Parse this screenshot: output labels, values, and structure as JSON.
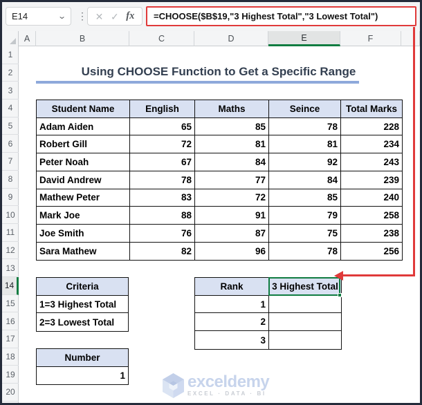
{
  "formula_bar": {
    "name_box": "E14",
    "dropdown_icon": "⌄",
    "menu_dots": "⋮",
    "cancel_icon": "✕",
    "enter_icon": "✓",
    "fx_label": "fx",
    "formula": "=CHOOSE($B$19,\"3 Highest Total\",\"3 Lowest Total\")"
  },
  "sheet": {
    "column_headers": [
      "A",
      "B",
      "C",
      "D",
      "E",
      "F"
    ],
    "selected_column": "E",
    "row_numbers": [
      "1",
      "2",
      "3",
      "4",
      "5",
      "6",
      "7",
      "8",
      "9",
      "10",
      "11",
      "12",
      "13",
      "14",
      "15",
      "16",
      "17",
      "18",
      "19",
      "20"
    ],
    "selected_row": "14",
    "selected_cell": "E14"
  },
  "title": {
    "text": "Using CHOOSE Function to Get a Specific Range"
  },
  "main_table": {
    "headers": [
      "Student Name",
      "English",
      "Maths",
      "Seince",
      "Total Marks"
    ],
    "rows": [
      {
        "name": "Adam Aiden",
        "english": "65",
        "maths": "85",
        "seince": "78",
        "total": "228"
      },
      {
        "name": "Robert Gill",
        "english": "72",
        "maths": "81",
        "seince": "81",
        "total": "234"
      },
      {
        "name": "Peter Noah",
        "english": "67",
        "maths": "84",
        "seince": "92",
        "total": "243"
      },
      {
        "name": "David Andrew",
        "english": "78",
        "maths": "77",
        "seince": "84",
        "total": "239"
      },
      {
        "name": "Mathew Peter",
        "english": "83",
        "maths": "72",
        "seince": "85",
        "total": "240"
      },
      {
        "name": "Mark Joe",
        "english": "88",
        "maths": "91",
        "seince": "79",
        "total": "258"
      },
      {
        "name": "Joe Smith",
        "english": "76",
        "maths": "87",
        "seince": "75",
        "total": "238"
      },
      {
        "name": "Sara Mathew",
        "english": "82",
        "maths": "96",
        "seince": "78",
        "total": "256"
      }
    ]
  },
  "criteria_table": {
    "header": "Criteria",
    "rows": [
      "1=3 Highest Total",
      "2=3 Lowest Total"
    ]
  },
  "rank_table": {
    "rank_header": "Rank",
    "choose_result": "3 Highest Total",
    "ranks": [
      "1",
      "2",
      "3"
    ]
  },
  "number_table": {
    "header": "Number",
    "value": "1"
  },
  "watermark": {
    "brand": "exceldemy",
    "tagline": "EXCEL · DATA · BI"
  },
  "colors": {
    "green": "#107C41",
    "red": "#E03A3A",
    "header_fill": "#D9E1F2",
    "title_color": "#333F50",
    "title_underline": "#8EA9DB",
    "watermark_blue": "#C7D4EC"
  }
}
